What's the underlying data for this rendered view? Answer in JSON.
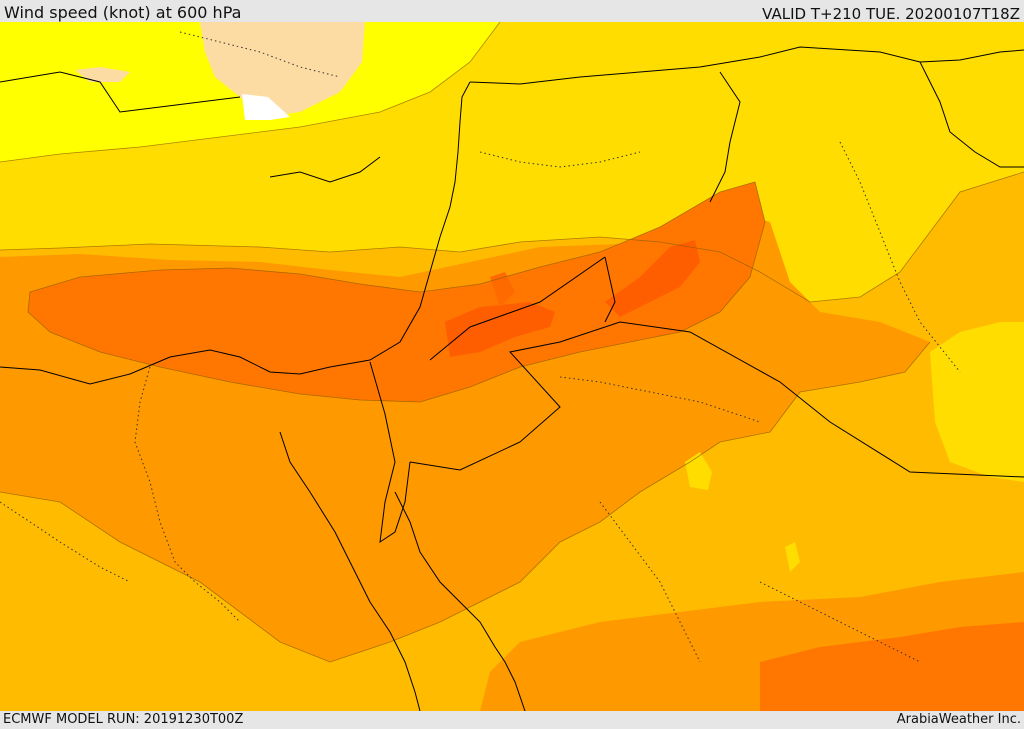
{
  "header": {
    "title": "Wind speed (knot) at 600 hPa",
    "valid": "VALID T+210 TUE. 20200107T18Z"
  },
  "footer": {
    "model_run": "ECMWF MODEL RUN: 20191230T00Z",
    "credit": "ArabiaWeather Inc."
  },
  "colors": {
    "white": "#ffffff",
    "cream": "#fddca4",
    "yellow": "#ffff00",
    "gold": "#ffdd00",
    "amber": "#ffbb00",
    "orange": "#ff9900",
    "dark_orange": "#ff7700",
    "red_orange": "#ff5e00"
  }
}
